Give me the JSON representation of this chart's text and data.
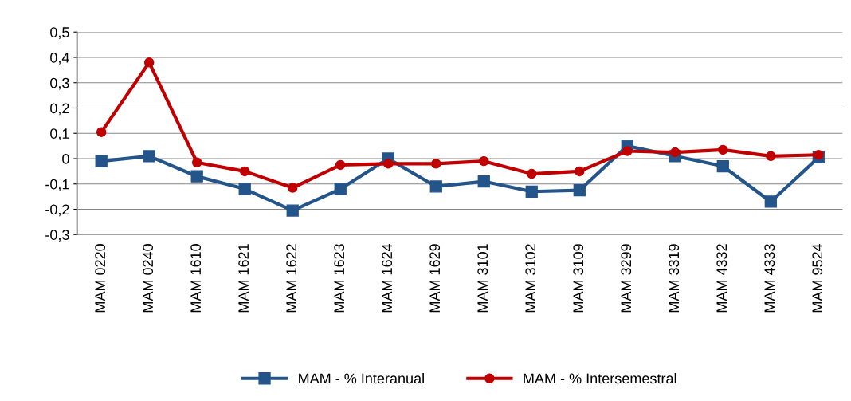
{
  "chart_data": {
    "type": "line",
    "categories": [
      "MAM 0220",
      "MAM 0240",
      "MAM 1610",
      "MAM 1621",
      "MAM 1622",
      "MAM 1623",
      "MAM 1624",
      "MAM 1629",
      "MAM 3101",
      "MAM 3102",
      "MAM 3109",
      "MAM 3299",
      "MAM 3319",
      "MAM 4332",
      "MAM 4333",
      "MAM 9524"
    ],
    "series": [
      {
        "name": "MAM - % Interanual",
        "color": "#24558a",
        "marker": "square",
        "values": [
          -0.01,
          0.01,
          -0.07,
          -0.12,
          -0.205,
          -0.12,
          0.0,
          -0.11,
          -0.09,
          -0.13,
          -0.125,
          0.05,
          0.01,
          -0.03,
          -0.17,
          0.005
        ]
      },
      {
        "name": "MAM - % Intersemestral",
        "color": "#c00000",
        "marker": "circle",
        "values": [
          0.105,
          0.38,
          -0.015,
          -0.05,
          -0.115,
          -0.025,
          -0.02,
          -0.02,
          -0.01,
          -0.06,
          -0.05,
          0.03,
          0.025,
          0.035,
          0.01,
          0.015
        ]
      }
    ],
    "ylim": [
      -0.3,
      0.5
    ],
    "yticks": [
      {
        "value": -0.3,
        "label": "-0,3"
      },
      {
        "value": -0.2,
        "label": "-0,2"
      },
      {
        "value": -0.1,
        "label": "-0,1"
      },
      0,
      {
        "value": 0.1,
        "label": "0,1"
      },
      {
        "value": 0.2,
        "label": "0,2"
      },
      {
        "value": 0.3,
        "label": "0,3"
      },
      {
        "value": 0.4,
        "label": "0,4"
      },
      {
        "value": 0.5,
        "label": "0,5"
      }
    ],
    "grid": "y",
    "legend": "bottom",
    "line_style": "solid"
  }
}
